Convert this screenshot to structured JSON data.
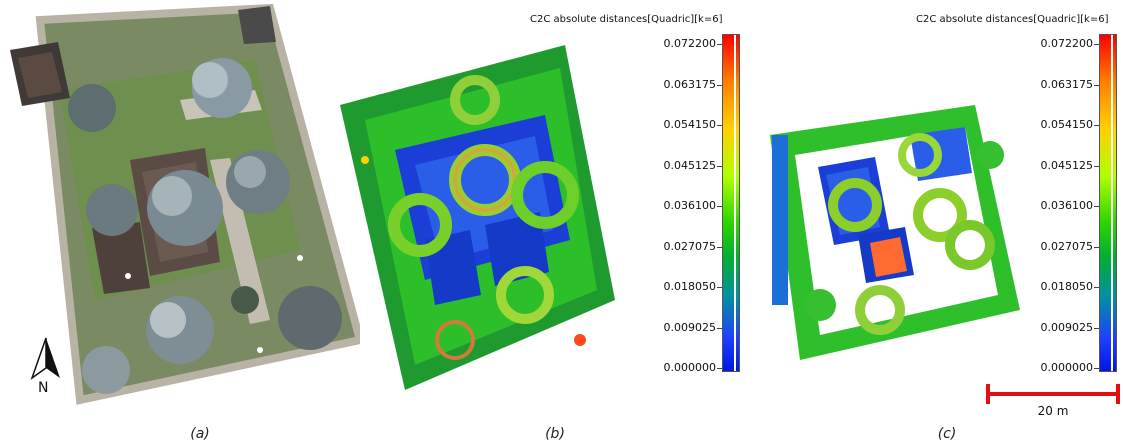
{
  "figure": {
    "panels": [
      {
        "caption": "(a)"
      },
      {
        "caption": "(b)"
      },
      {
        "caption": "(c)"
      }
    ],
    "colorbar_b": {
      "title": "C2C absolute distances[Quadric][k=6]",
      "ticks": [
        "0.072200",
        "0.063175",
        "0.054150",
        "0.045125",
        "0.036100",
        "0.027075",
        "0.018050",
        "0.009025",
        "0.000000"
      ]
    },
    "colorbar_c": {
      "title": "C2C absolute distances[Quadric][k=6]",
      "ticks": [
        "0.072200",
        "0.063175",
        "0.054150",
        "0.045125",
        "0.036100",
        "0.027075",
        "0.018050",
        "0.009025",
        "0.000000"
      ]
    },
    "north_arrow": {
      "label": "N"
    },
    "scale_bar": {
      "label": "20 m",
      "color": "#e01010"
    },
    "colors": {
      "high": "#ff0000",
      "mid": "#2cd400",
      "low": "#0018e0",
      "grass": "#6f8f4e",
      "roof": "#5b4a42"
    }
  }
}
